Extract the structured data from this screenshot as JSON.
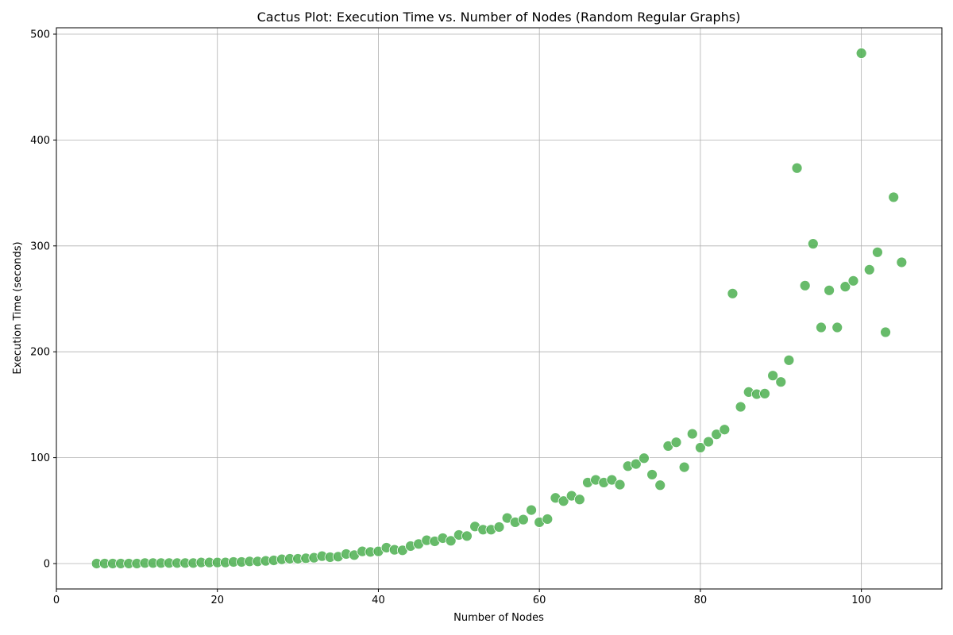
{
  "chart_data": {
    "type": "scatter",
    "title": "Cactus Plot: Execution Time vs. Number of Nodes (Random Regular Graphs)",
    "xlabel": "Number of Nodes",
    "ylabel": "Execution Time (seconds)",
    "xlim": [
      0,
      110
    ],
    "ylim": [
      -24,
      506
    ],
    "xticks": [
      0,
      20,
      40,
      60,
      80,
      100
    ],
    "yticks": [
      0,
      100,
      200,
      300,
      400,
      500
    ],
    "grid": true,
    "point_color": "#4caf50",
    "point_edge_color": "#ffffff",
    "series": [
      {
        "x": [
          5,
          6,
          7,
          8,
          9,
          10,
          11,
          12,
          13,
          14,
          15,
          16,
          17,
          18,
          19,
          20,
          21,
          22,
          23,
          24,
          25,
          26,
          27,
          28,
          29,
          30,
          31,
          32,
          33,
          34,
          35,
          36,
          37,
          38,
          39,
          40,
          41,
          42,
          43,
          44,
          45,
          46,
          47,
          48,
          49,
          50,
          51,
          52,
          53,
          54,
          55,
          56,
          57,
          58,
          59,
          60,
          61,
          62,
          63,
          64,
          65,
          66,
          67,
          68,
          69,
          70,
          71,
          72,
          73,
          74,
          75,
          76,
          77,
          78,
          79,
          80,
          81,
          82,
          83,
          84,
          85,
          86,
          87,
          88,
          89,
          90,
          91,
          92,
          93,
          94,
          95,
          96,
          97,
          98,
          99,
          100,
          101,
          102,
          103,
          104,
          105
        ],
        "y": [
          0,
          0,
          0,
          0,
          0,
          0,
          0.5,
          0.5,
          0.5,
          0.5,
          0.5,
          0.5,
          0.5,
          1,
          1,
          1,
          1,
          1.5,
          1.5,
          2,
          2,
          2.5,
          3,
          4,
          4.5,
          4.5,
          5,
          5.5,
          7,
          6,
          6.5,
          9,
          8,
          11.5,
          11,
          11.5,
          15,
          13,
          12.5,
          16.5,
          18.5,
          22,
          21,
          24,
          21.5,
          27,
          26,
          35,
          32,
          32,
          34.5,
          43,
          39,
          41.5,
          50.5,
          39,
          42,
          62,
          59,
          64,
          60.5,
          76.5,
          79,
          76.5,
          79,
          74.5,
          92,
          94,
          99.5,
          84,
          74,
          111,
          114.5,
          91,
          122.5,
          109.5,
          115,
          122,
          126.5,
          255,
          148,
          162,
          160,
          160.5,
          177.5,
          171.5,
          192,
          373.5,
          262.5,
          302,
          223,
          258,
          223,
          261.5,
          267,
          482,
          277.5,
          294,
          218.5,
          346,
          284.5
        ]
      }
    ]
  }
}
